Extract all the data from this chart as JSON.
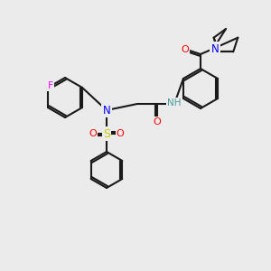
{
  "bg_color": "#ebebeb",
  "bond_color": "#1a1a1a",
  "bond_lw": 1.5,
  "atom_colors": {
    "F": "#ff00ff",
    "N": "#0000ff",
    "O": "#ff0000",
    "S": "#cccc00",
    "H": "#4a9a9a",
    "C": "#1a1a1a"
  },
  "font_size": 7.5
}
